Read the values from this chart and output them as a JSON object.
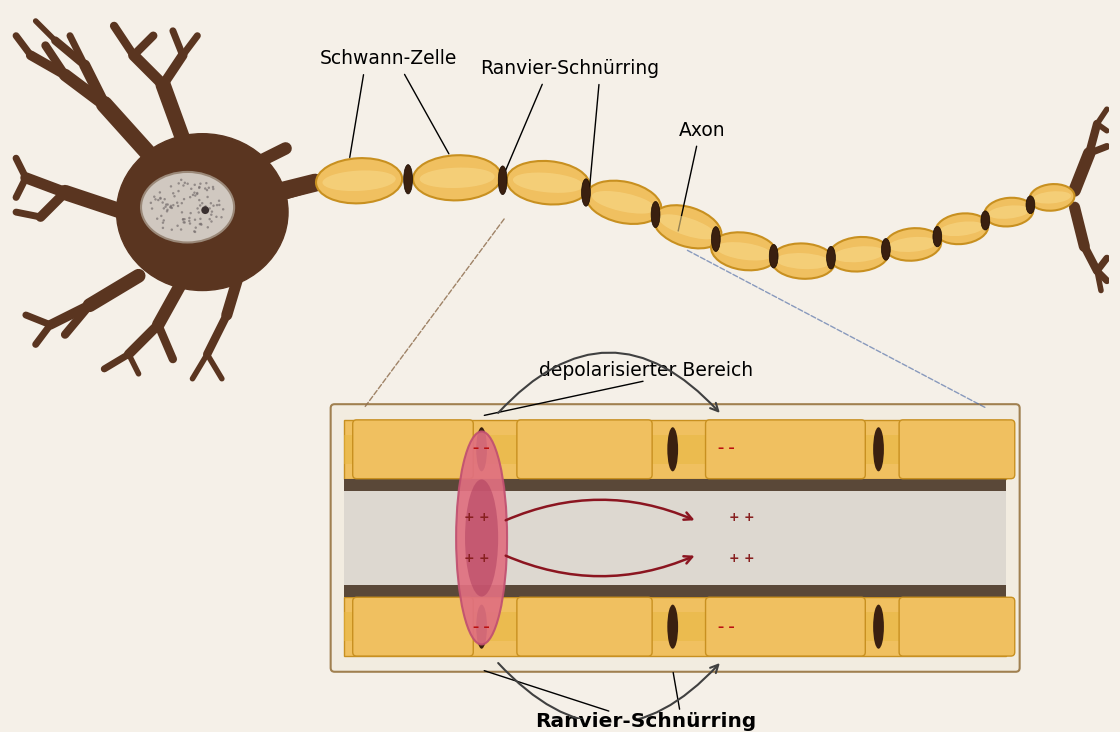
{
  "bg_color": "#f5f0e8",
  "neuron_color": "#5a3520",
  "myelin_color": "#f0c060",
  "myelin_edge_color": "#c89020",
  "node_color": "#3a2010",
  "axon_core_color": "#e8e0d8",
  "axon_stripe_color": "#6a5a50",
  "depol_color": "#e07080",
  "depol_dark": "#b04060",
  "arrow_color": "#8b1520",
  "minus_color": "#bb1010",
  "plus_color": "#882020",
  "text_color": "#000000",
  "label_schwann": "Schwann-Zelle",
  "label_ranvier": "Ranvier-Schnürring",
  "label_axon": "Axon",
  "label_depol": "depolarisierter Bereich",
  "label_ranvier2": "Ranvier-Schnürring",
  "fig_width": 11.2,
  "fig_height": 7.32
}
